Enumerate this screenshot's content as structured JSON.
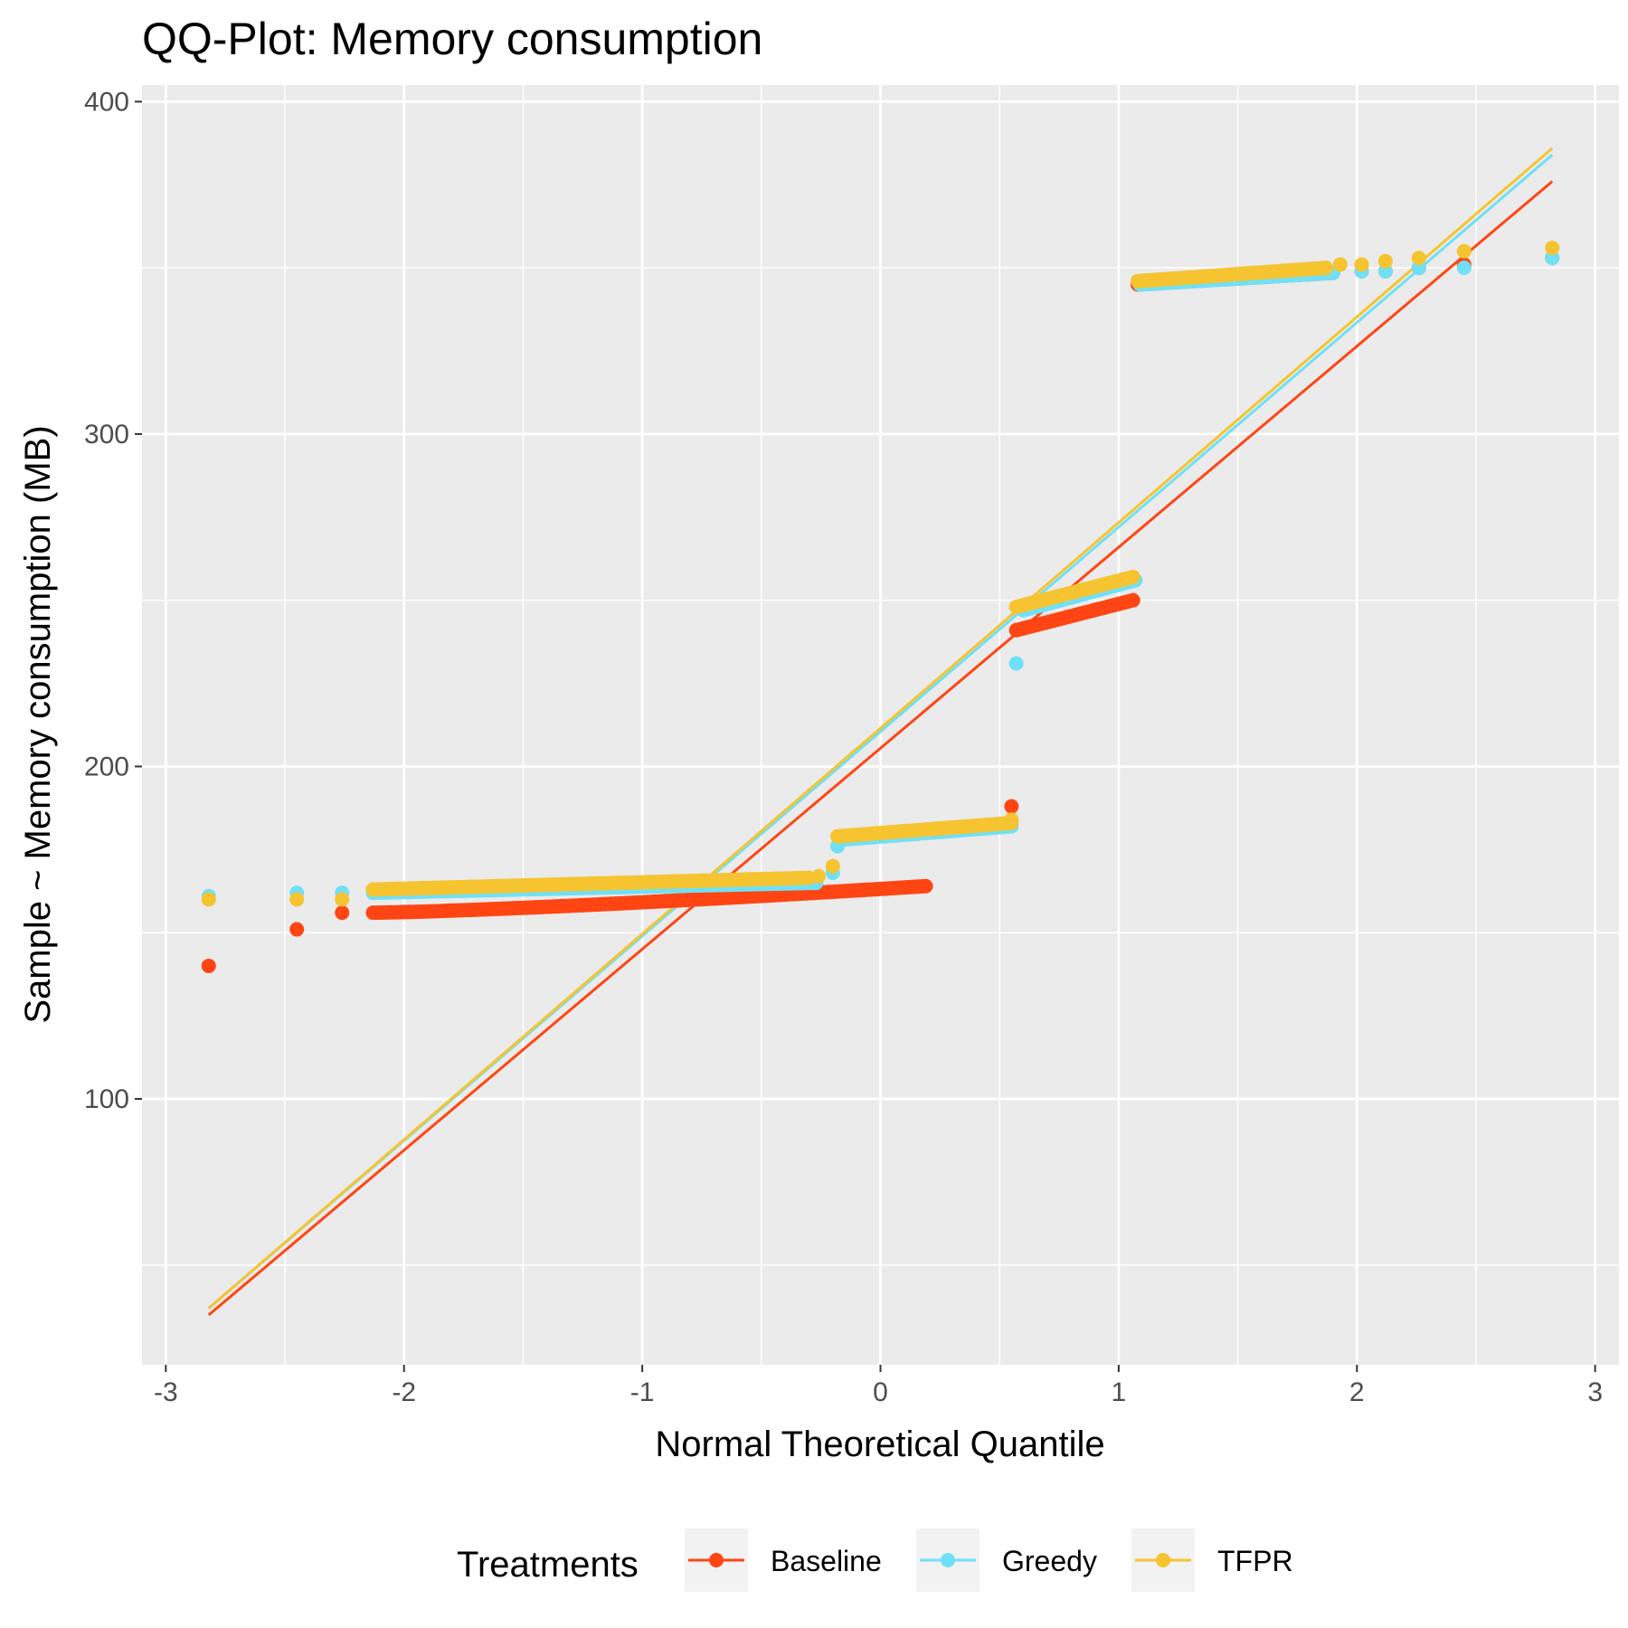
{
  "chart_data": {
    "type": "scatter",
    "title": "QQ-Plot: Memory consumption",
    "xlabel": "Normal Theoretical Quantile",
    "ylabel": "Sample ~ Memory consumption (MB)",
    "xlim": [
      -3.1,
      3.1
    ],
    "ylim": [
      20,
      405
    ],
    "x_ticks": [
      -3,
      -2,
      -1,
      0,
      1,
      2,
      3
    ],
    "y_ticks": [
      100,
      200,
      300,
      400
    ],
    "grid": true,
    "legend": {
      "title": "Treatments",
      "position": "bottom"
    },
    "series": [
      {
        "name": "Baseline",
        "color": "#ff4513",
        "line": {
          "x": [
            -2.82,
            2.82
          ],
          "y": [
            35,
            376
          ]
        },
        "segments": [
          {
            "x_start": -2.13,
            "x_end": 0.19,
            "y_start": 156,
            "y_end": 164,
            "curve": 1.3
          },
          {
            "x_start": 0.57,
            "x_end": 1.06,
            "y_start": 241,
            "y_end": 250,
            "curve": 1.0
          },
          {
            "x_start": 1.08,
            "x_end": 1.9,
            "y_start": 345,
            "y_end": 348.5,
            "curve": 1.0
          }
        ],
        "points": [
          {
            "x": -2.82,
            "y": 140
          },
          {
            "x": -2.45,
            "y": 151
          },
          {
            "x": -2.26,
            "y": 156
          },
          {
            "x": 0.55,
            "y": 188
          },
          {
            "x": 2.02,
            "y": 349
          },
          {
            "x": 2.12,
            "y": 349
          },
          {
            "x": 2.26,
            "y": 350
          },
          {
            "x": 2.45,
            "y": 351
          },
          {
            "x": 2.82,
            "y": 353
          }
        ]
      },
      {
        "name": "Greedy",
        "color": "#6fe0f7",
        "line": {
          "x": [
            -2.82,
            2.82
          ],
          "y": [
            37,
            384
          ]
        },
        "segments": [
          {
            "x_start": -2.13,
            "x_end": -0.27,
            "y_start": 162,
            "y_end": 165,
            "curve": 1.0
          },
          {
            "x_start": -0.16,
            "x_end": 0.55,
            "y_start": 178,
            "y_end": 182,
            "curve": 1.0
          },
          {
            "x_start": 0.6,
            "x_end": 1.07,
            "y_start": 247,
            "y_end": 256,
            "curve": 1.0
          },
          {
            "x_start": 1.09,
            "x_end": 1.9,
            "y_start": 345,
            "y_end": 348.5,
            "curve": 1.0
          }
        ],
        "points": [
          {
            "x": -2.82,
            "y": 161
          },
          {
            "x": -2.45,
            "y": 162
          },
          {
            "x": -2.26,
            "y": 162
          },
          {
            "x": -0.2,
            "y": 168
          },
          {
            "x": -0.18,
            "y": 176
          },
          {
            "x": 0.57,
            "y": 231
          },
          {
            "x": 2.02,
            "y": 349
          },
          {
            "x": 2.12,
            "y": 349
          },
          {
            "x": 2.26,
            "y": 350
          },
          {
            "x": 2.45,
            "y": 350
          },
          {
            "x": 2.82,
            "y": 353
          }
        ]
      },
      {
        "name": "TFPR",
        "color": "#f5c430",
        "line": {
          "x": [
            -2.82,
            2.82
          ],
          "y": [
            37,
            386
          ]
        },
        "segments": [
          {
            "x_start": -2.13,
            "x_end": -0.3,
            "y_start": 163,
            "y_end": 166.5,
            "curve": 1.0
          },
          {
            "x_start": -0.18,
            "x_end": 0.55,
            "y_start": 179,
            "y_end": 183,
            "curve": 1.0
          },
          {
            "x_start": 0.57,
            "x_end": 1.06,
            "y_start": 248,
            "y_end": 257,
            "curve": 1.0
          },
          {
            "x_start": 1.08,
            "x_end": 1.87,
            "y_start": 346,
            "y_end": 350,
            "curve": 1.0
          }
        ],
        "points": [
          {
            "x": -2.82,
            "y": 160
          },
          {
            "x": -2.45,
            "y": 160
          },
          {
            "x": -2.26,
            "y": 160
          },
          {
            "x": -0.26,
            "y": 167
          },
          {
            "x": -0.2,
            "y": 170
          },
          {
            "x": 0.55,
            "y": 184
          },
          {
            "x": 1.93,
            "y": 351
          },
          {
            "x": 2.02,
            "y": 351
          },
          {
            "x": 2.12,
            "y": 352
          },
          {
            "x": 2.26,
            "y": 353
          },
          {
            "x": 2.45,
            "y": 355
          },
          {
            "x": 2.82,
            "y": 356
          }
        ]
      }
    ]
  }
}
